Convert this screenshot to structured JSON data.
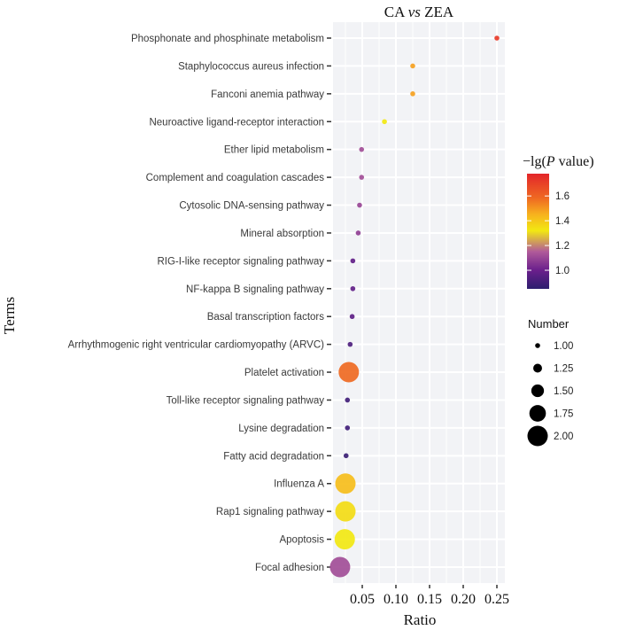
{
  "chart_data": {
    "type": "scatter",
    "subtype": "bubble",
    "title": "CA vs ZEA",
    "title_parts": [
      {
        "text": "CA ",
        "italic": false
      },
      {
        "text": "vs",
        "italic": true
      },
      {
        "text": " ZEA",
        "italic": false
      }
    ],
    "xlabel": "Ratio",
    "ylabel": "Terms",
    "xlim": [
      0.0,
      0.26
    ],
    "x_ticks": [
      0.05,
      0.1,
      0.15,
      0.2,
      0.25
    ],
    "x_tick_labels": [
      "0.05",
      "0.10",
      "0.15",
      "0.20",
      "0.25"
    ],
    "grid": true,
    "points": [
      {
        "term": "Phosphonate and phosphinate metabolism",
        "ratio": 0.25,
        "number": 1,
        "neg_log_p": 1.72
      },
      {
        "term": "Staphylococcus aureus infection",
        "ratio": 0.125,
        "number": 1,
        "neg_log_p": 1.48
      },
      {
        "term": "Fanconi anemia pathway",
        "ratio": 0.125,
        "number": 1,
        "neg_log_p": 1.48
      },
      {
        "term": "Neuroactive ligand-receptor interaction",
        "ratio": 0.083,
        "number": 1,
        "neg_log_p": 1.32
      },
      {
        "term": "Ether lipid metabolism",
        "ratio": 0.049,
        "number": 1,
        "neg_log_p": 1.12
      },
      {
        "term": "Complement and coagulation cascades",
        "ratio": 0.049,
        "number": 1,
        "neg_log_p": 1.12
      },
      {
        "term": "Cytosolic DNA-sensing pathway",
        "ratio": 0.046,
        "number": 1,
        "neg_log_p": 1.1
      },
      {
        "term": "Mineral absorption",
        "ratio": 0.044,
        "number": 1,
        "neg_log_p": 1.08
      },
      {
        "term": "RIG-I-like receptor signaling pathway",
        "ratio": 0.036,
        "number": 1,
        "neg_log_p": 0.98
      },
      {
        "term": "NF-kappa B signaling pathway",
        "ratio": 0.036,
        "number": 1,
        "neg_log_p": 0.98
      },
      {
        "term": "Basal transcription factors",
        "ratio": 0.035,
        "number": 1,
        "neg_log_p": 0.97
      },
      {
        "term": "Arrhythmogenic right ventricular cardiomyopathy (ARVC)",
        "ratio": 0.032,
        "number": 1,
        "neg_log_p": 0.93
      },
      {
        "term": "Platelet activation",
        "ratio": 0.03,
        "number": 2,
        "neg_log_p": 1.58
      },
      {
        "term": "Toll-like receptor signaling pathway",
        "ratio": 0.028,
        "number": 1,
        "neg_log_p": 0.9
      },
      {
        "term": "Lysine degradation",
        "ratio": 0.028,
        "number": 1,
        "neg_log_p": 0.9
      },
      {
        "term": "Fatty acid degradation",
        "ratio": 0.026,
        "number": 1,
        "neg_log_p": 0.88
      },
      {
        "term": "Influenza A",
        "ratio": 0.025,
        "number": 2,
        "neg_log_p": 1.42
      },
      {
        "term": "Rap1 signaling pathway",
        "ratio": 0.025,
        "number": 2,
        "neg_log_p": 1.35
      },
      {
        "term": "Apoptosis",
        "ratio": 0.024,
        "number": 2,
        "neg_log_p": 1.32
      },
      {
        "term": "Focal adhesion",
        "ratio": 0.017,
        "number": 2,
        "neg_log_p": 1.12
      }
    ],
    "color_legend": {
      "title": "−lg(P value)",
      "title_parts": [
        {
          "text": "−lg(",
          "italic": false
        },
        {
          "text": "P",
          "italic": true
        },
        {
          "text": " value)",
          "italic": false
        }
      ],
      "range": [
        0.85,
        1.78
      ],
      "ticks": [
        1.0,
        1.2,
        1.4,
        1.6
      ],
      "tick_labels": [
        "1.0",
        "1.2",
        "1.4",
        "1.6"
      ],
      "colors": [
        "#2d1e6e",
        "#6a1f8c",
        "#b05a9a",
        "#f2e812",
        "#f7b21e",
        "#ef6a22",
        "#e3262a"
      ],
      "placement": "right"
    },
    "size_legend": {
      "title": "Number",
      "values": [
        1.0,
        1.25,
        1.5,
        1.75,
        2.0
      ],
      "labels": [
        "1.00",
        "1.25",
        "1.50",
        "1.75",
        "2.00"
      ],
      "placement": "right"
    }
  },
  "colors": {
    "panel_background": "#f2f3f6",
    "gridline": "#ffffff"
  }
}
